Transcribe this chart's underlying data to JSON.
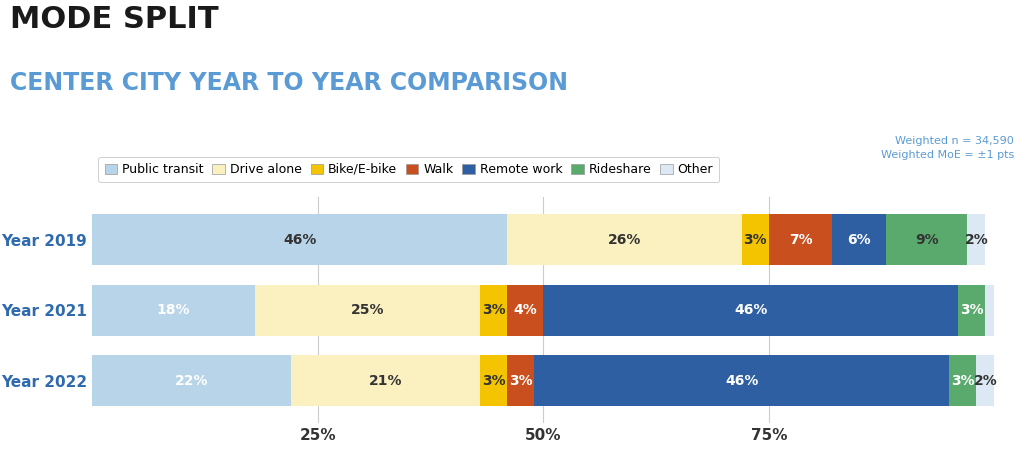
{
  "title1": "MODE SPLIT",
  "title2": "CENTER CITY YEAR TO YEAR COMPARISON",
  "note": "Weighted n = 34,590\nWeighted MoE = ±1 pts",
  "years": [
    "Year 2019",
    "Year 2021",
    "Year 2022"
  ],
  "categories": [
    "Public transit",
    "Drive alone",
    "Bike/E-bike",
    "Walk",
    "Remote work",
    "Rideshare",
    "Other"
  ],
  "colors": [
    "#b8d4e8",
    "#faf0c0",
    "#f5c400",
    "#c94f1e",
    "#2e5fa3",
    "#5aaa6e",
    "#dce9f5"
  ],
  "data": {
    "Year 2019": [
      46,
      26,
      3,
      7,
      6,
      9,
      2
    ],
    "Year 2021": [
      18,
      25,
      3,
      4,
      46,
      3,
      1
    ],
    "Year 2022": [
      22,
      21,
      3,
      3,
      46,
      3,
      2
    ]
  },
  "label_colors": {
    "Year 2019": [
      "#333333",
      "#333333",
      "#333333",
      "#ffffff",
      "#ffffff",
      "#333333",
      "#333333"
    ],
    "Year 2021": [
      "#ffffff",
      "#333333",
      "#333333",
      "#ffffff",
      "#ffffff",
      "#ffffff",
      ""
    ],
    "Year 2022": [
      "#ffffff",
      "#333333",
      "#333333",
      "#ffffff",
      "#ffffff",
      "#ffffff",
      "#333333"
    ]
  },
  "show_label_min": 2,
  "bg_color": "#ffffff",
  "bar_height": 0.72,
  "ytick_fontsize": 11,
  "label_fontsize": 10,
  "title1_fontsize": 22,
  "title2_fontsize": 17,
  "note_fontsize": 8,
  "legend_fontsize": 9,
  "xtick_positions": [
    25,
    50,
    75
  ],
  "xtick_labels": [
    "25%",
    "50%",
    "75%"
  ],
  "xtick_fontsize": 11,
  "year_label_color": "#2e6aad",
  "title1_color": "#1a1a1a",
  "title2_color": "#5b9bd5",
  "note_color": "#5b9bd5",
  "grid_color": "#cccccc"
}
